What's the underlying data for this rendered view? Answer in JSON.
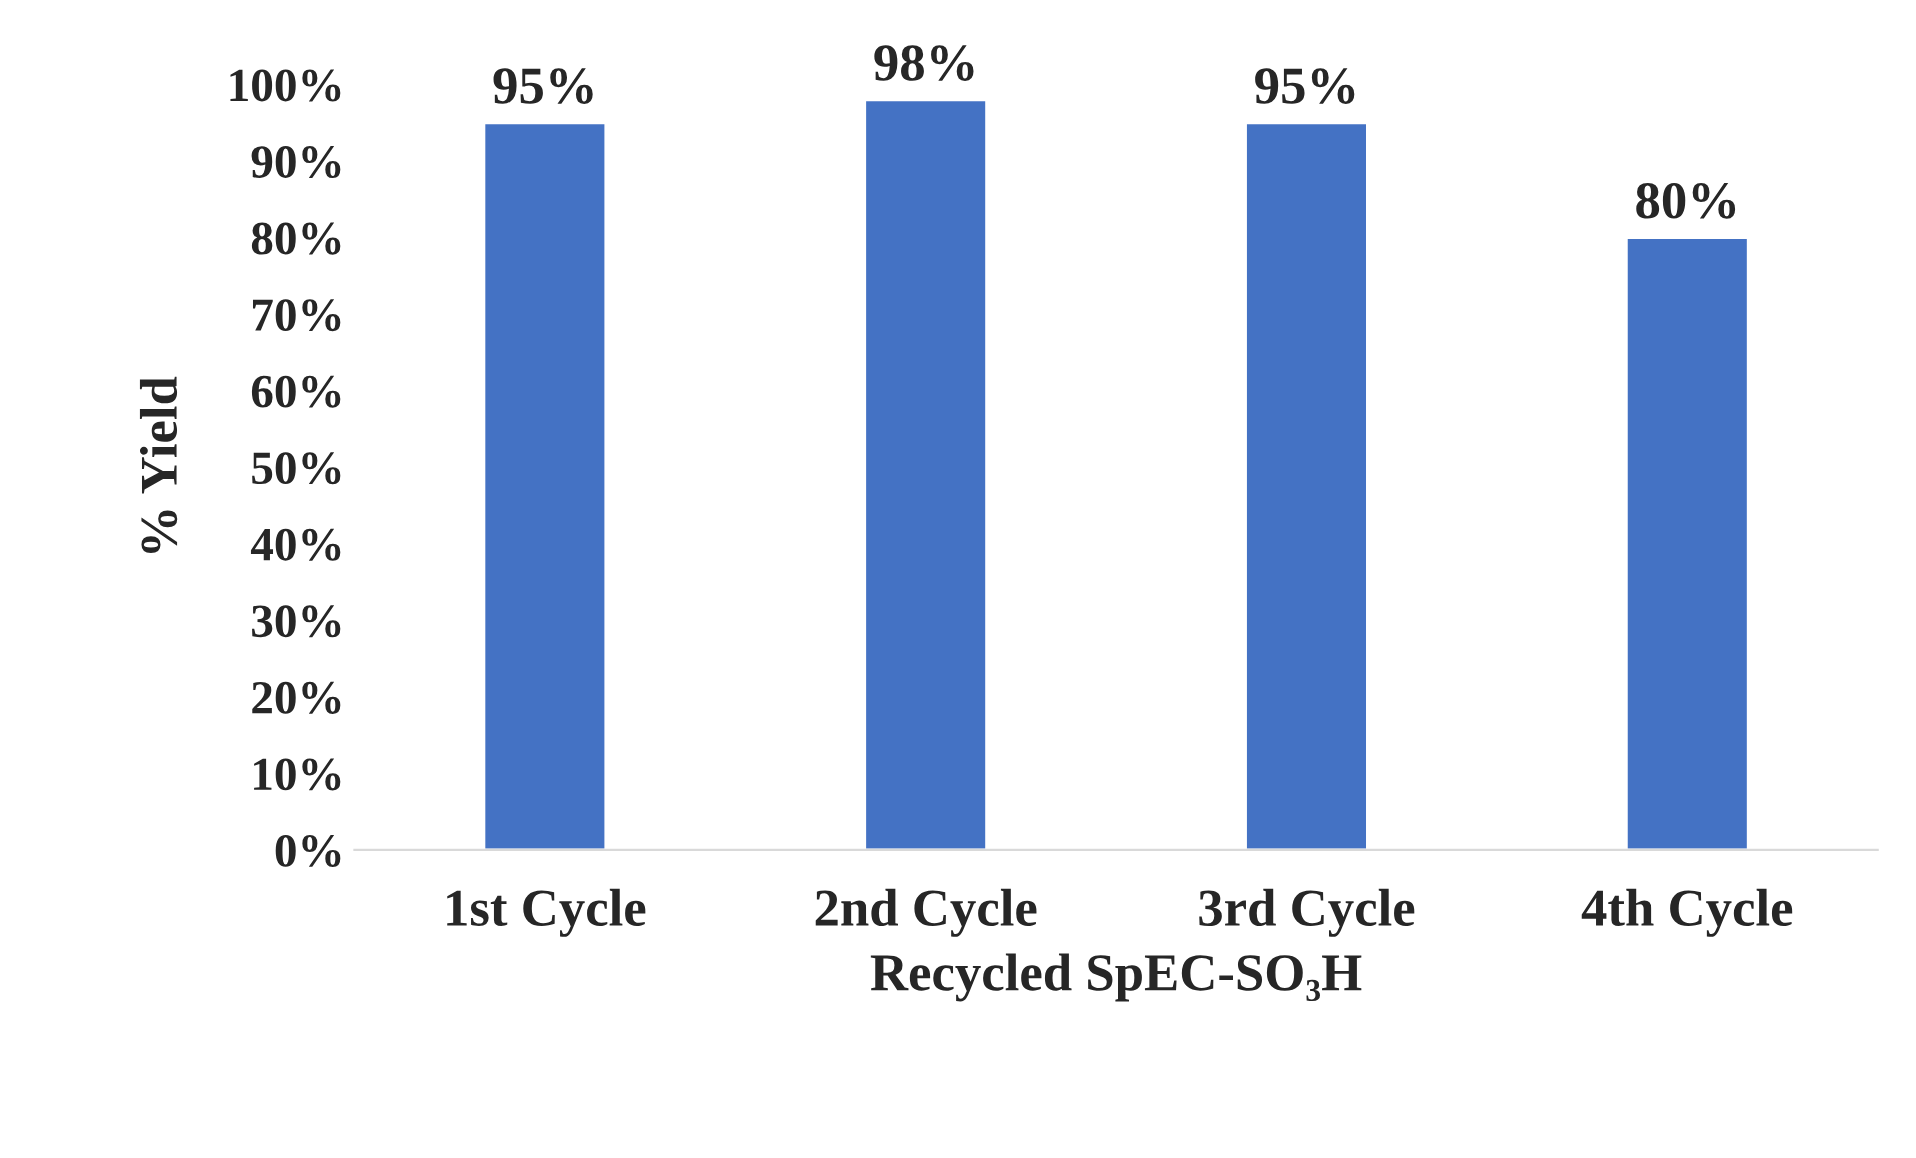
{
  "chart_data": {
    "type": "bar",
    "xlabel": "Recycled SpEC-SO₃H",
    "ylabel": "% Yield",
    "categories": [
      "1st Cycle",
      "2nd Cycle",
      "3rd Cycle",
      "4th Cycle"
    ],
    "values": [
      95,
      98,
      95,
      80
    ],
    "value_labels": [
      "95%",
      "98%",
      "95%",
      "80%"
    ],
    "color": "#4472c4",
    "ylim": [
      0,
      100
    ],
    "yticks": [
      {
        "value": 0,
        "label": "0%"
      },
      {
        "value": 10,
        "label": "10%"
      },
      {
        "value": 20,
        "label": "20%"
      },
      {
        "value": 30,
        "label": "30%"
      },
      {
        "value": 40,
        "label": "40%"
      },
      {
        "value": 50,
        "label": "50%"
      },
      {
        "value": 60,
        "label": "60%"
      },
      {
        "value": 70,
        "label": "70%"
      },
      {
        "value": 80,
        "label": "80%"
      },
      {
        "value": 90,
        "label": "90%"
      },
      {
        "value": 100,
        "label": "100%"
      }
    ],
    "grid": false,
    "legend": false
  }
}
